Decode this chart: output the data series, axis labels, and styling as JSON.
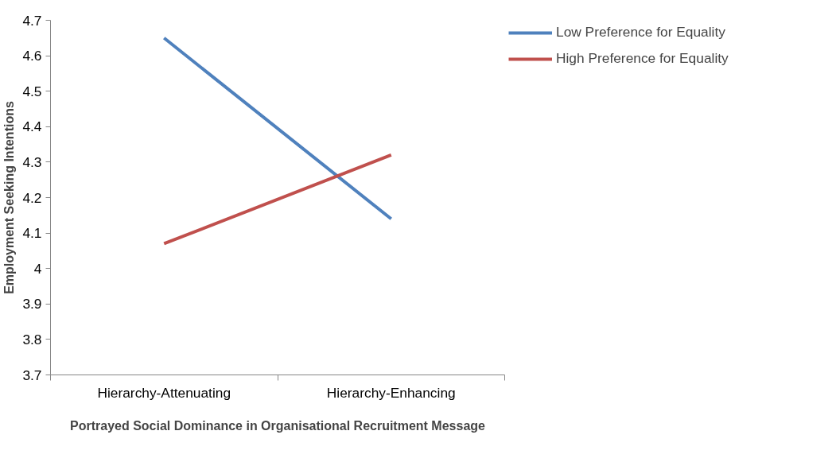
{
  "chart_data": {
    "type": "line",
    "xlabel": "Portrayed Social Dominance in Organisational Recruitment Message",
    "ylabel": "Employment Seeking Intentions",
    "categories": [
      "Hierarchy-Attenuating",
      "Hierarchy-Enhancing"
    ],
    "series": [
      {
        "name": "Low Preference for Equality",
        "color": "#4f81bd",
        "values": [
          4.65,
          4.14
        ]
      },
      {
        "name": "High Preference for Equality",
        "color": "#c0504d",
        "values": [
          4.07,
          4.32
        ]
      }
    ],
    "ylim": [
      3.7,
      4.7
    ],
    "yticks": [
      3.7,
      3.8,
      3.9,
      4,
      4.1,
      4.2,
      4.3,
      4.4,
      4.5,
      4.6,
      4.7
    ],
    "grid": false,
    "legend": "top right",
    "marker": "none",
    "line_style": "solid"
  }
}
